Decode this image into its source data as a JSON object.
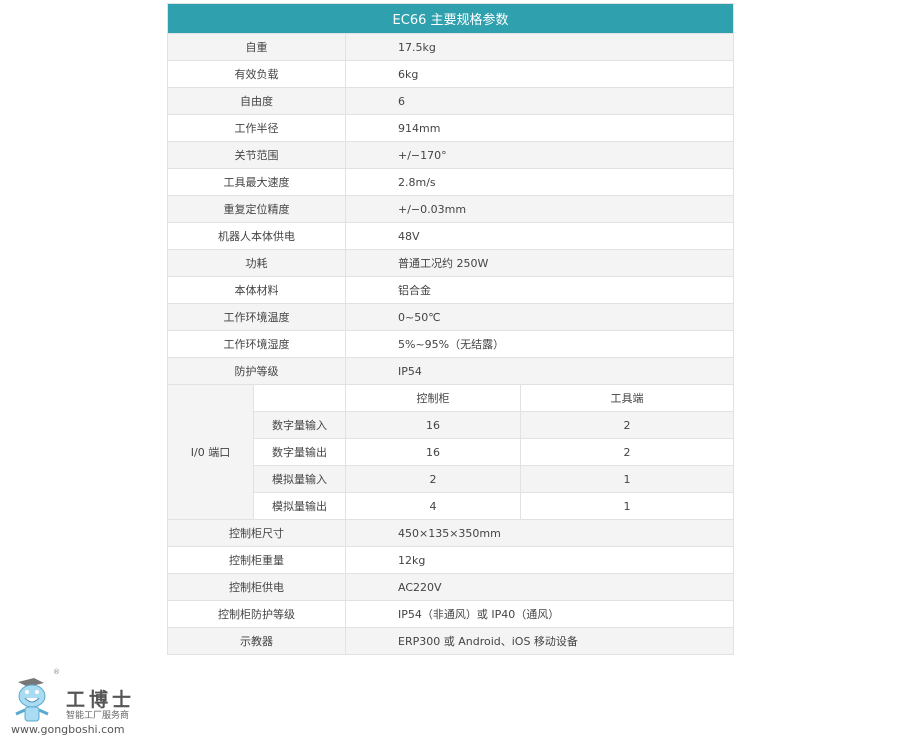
{
  "title": "EC66 主要规格参数",
  "specs": [
    {
      "k": "自重",
      "v": "17.5kg"
    },
    {
      "k": "有效负载",
      "v": "6kg"
    },
    {
      "k": "自由度",
      "v": "6"
    },
    {
      "k": "工作半径",
      "v": "914mm"
    },
    {
      "k": "关节范围",
      "v": "+/−170°"
    },
    {
      "k": "工具最大速度",
      "v": "2.8m/s"
    },
    {
      "k": "重复定位精度",
      "v": "+/−0.03mm"
    },
    {
      "k": "机器人本体供电",
      "v": "48V"
    },
    {
      "k": "功耗",
      "v": "普通工况约 250W"
    },
    {
      "k": "本体材料",
      "v": "铝合金"
    },
    {
      "k": "工作环境温度",
      "v": "0~50℃"
    },
    {
      "k": "工作环境湿度",
      "v": "5%~95%（无结露）"
    },
    {
      "k": "防护等级",
      "v": "IP54"
    }
  ],
  "io": {
    "label": "I/0 端口",
    "col1": "控制柜",
    "col2": "工具端",
    "rows": [
      {
        "k": "数字量输入",
        "a": "16",
        "b": "2"
      },
      {
        "k": "数字量输出",
        "a": "16",
        "b": "2"
      },
      {
        "k": "模拟量输入",
        "a": "2",
        "b": "1"
      },
      {
        "k": "模拟量输出",
        "a": "4",
        "b": "1"
      }
    ]
  },
  "specs2": [
    {
      "k": "控制柜尺寸",
      "v": "450×135×350mm"
    },
    {
      "k": "控制柜重量",
      "v": "12kg"
    },
    {
      "k": "控制柜供电",
      "v": "AC220V"
    },
    {
      "k": "控制柜防护等级",
      "v": "IP54（非通风）或 IP40（通风）"
    },
    {
      "k": "示教器",
      "v": "ERP300 或 Android、iOS 移动设备"
    }
  ],
  "logo": {
    "name": "工博士",
    "tagline": "智能工厂服务商",
    "url": "www.gongboshi.com",
    "reg": "®"
  },
  "colors": {
    "header": "#2fa0ad"
  }
}
